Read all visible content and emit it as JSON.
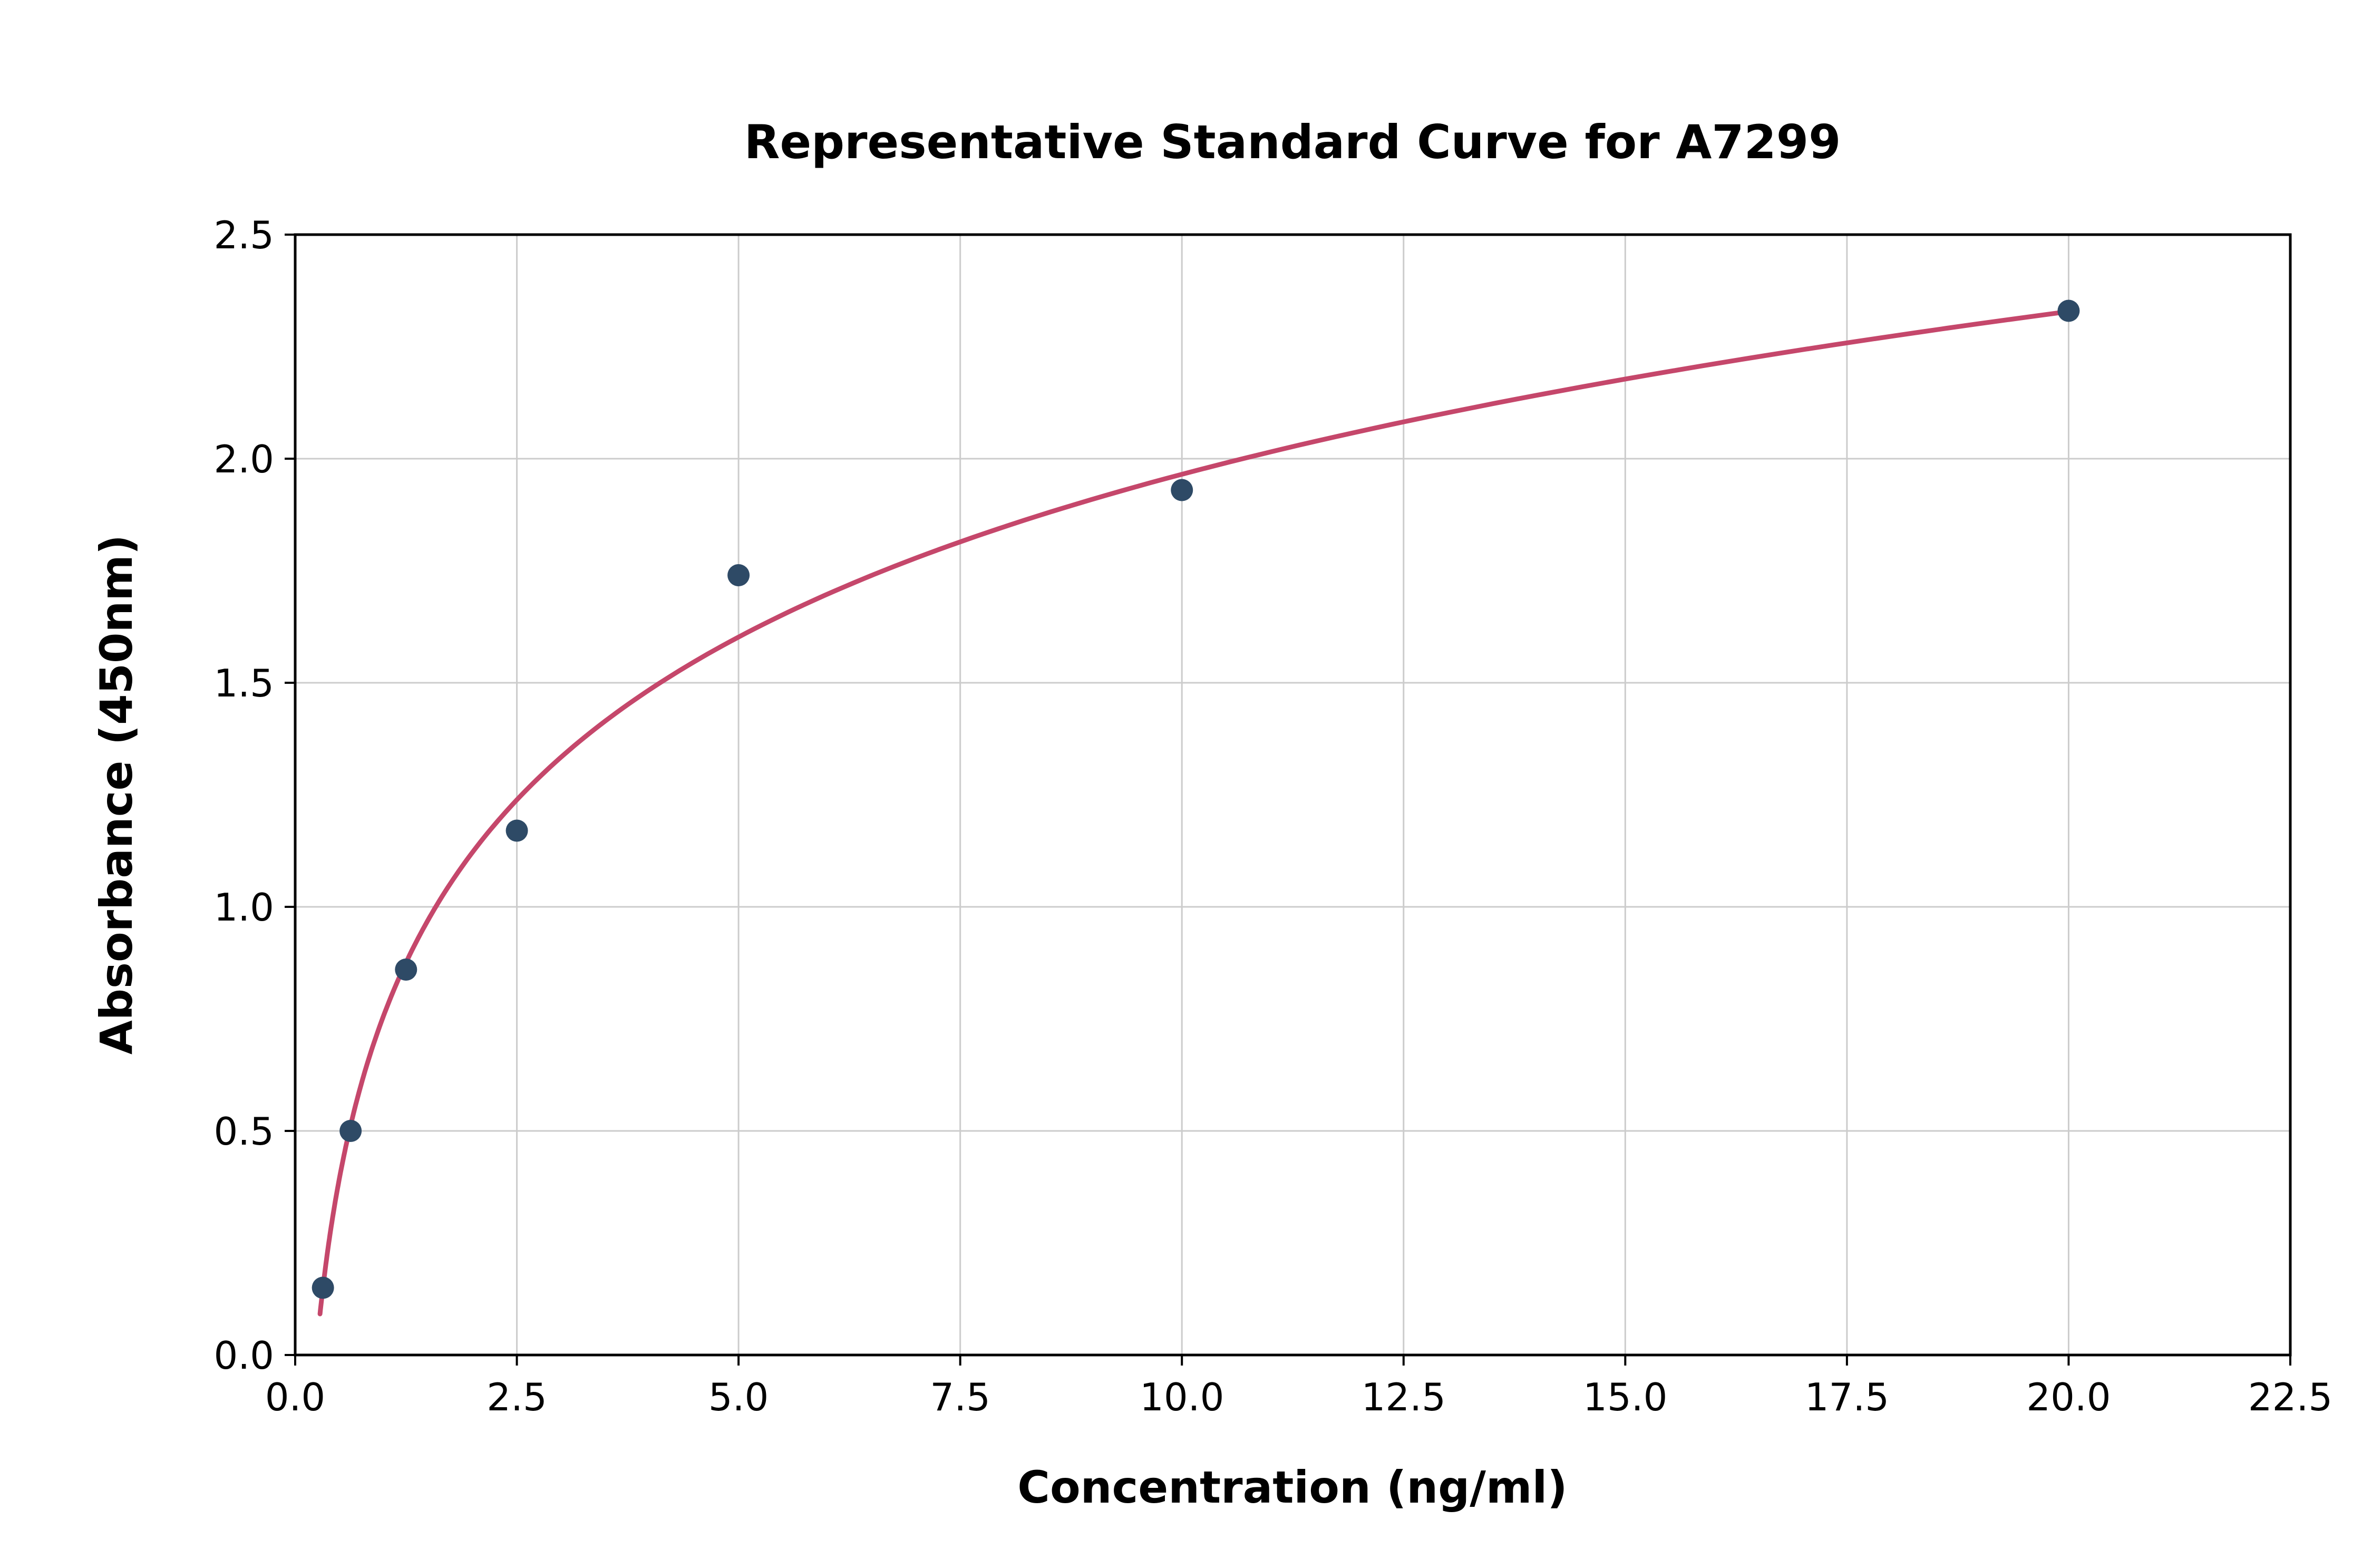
{
  "figure": {
    "background": "#ffffff"
  },
  "chart_data": {
    "type": "scatter",
    "title": "Representative Standard Curve for A7299",
    "xlabel": "Concentration (ng/ml)",
    "ylabel": "Absorbance (450nm)",
    "xlim": [
      0,
      22.5
    ],
    "ylim": [
      0,
      2.5
    ],
    "grid": true,
    "legend": "none",
    "x_ticks": [
      0,
      2.5,
      5,
      7.5,
      10,
      12.5,
      15,
      17.5,
      20,
      22.5
    ],
    "x_tick_labels": [
      "0.0",
      "2.5",
      "5.0",
      "7.5",
      "10.0",
      "12.5",
      "15.0",
      "17.5",
      "20.0",
      "22.5"
    ],
    "y_ticks": [
      0,
      0.5,
      1,
      1.5,
      2,
      2.5
    ],
    "y_tick_labels": [
      "0.0",
      "0.5",
      "1.0",
      "1.5",
      "2.0",
      "2.5"
    ],
    "points": {
      "x": [
        0.313,
        0.625,
        1.25,
        2.5,
        5,
        10,
        20
      ],
      "y": [
        0.15,
        0.5,
        0.86,
        1.17,
        1.74,
        1.93,
        2.33
      ]
    },
    "fit_curve": {
      "type": "logarithmic",
      "equation": "y = a + b * ln(x / x0)",
      "a": 0.15,
      "b": 0.524,
      "x0": 0.313,
      "x_start": 0.28,
      "x_end": 20
    },
    "colors": {
      "point": "#2e4a66",
      "curve": "#c5476b",
      "grid": "#cccccc",
      "spine": "#000000"
    }
  }
}
